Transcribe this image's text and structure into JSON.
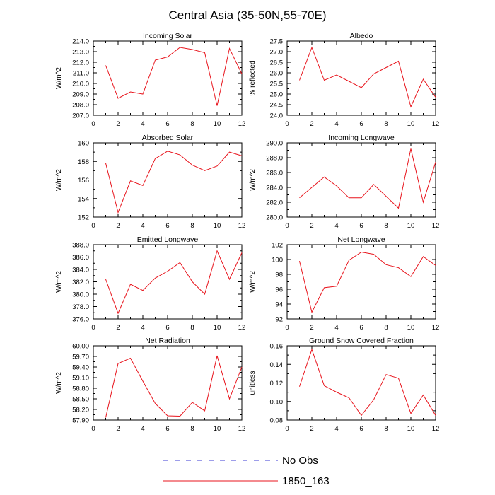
{
  "page_title": "Central Asia (35-50N,55-70E)",
  "colors": {
    "model_line": "#e8141c",
    "obs_line": "#3b3bd6",
    "axis": "#000000",
    "background": "#ffffff"
  },
  "legend": {
    "entries": [
      {
        "label": "No Obs",
        "style": "dashed",
        "color": "#3b3bd6"
      },
      {
        "label": "1850_163",
        "style": "solid",
        "color": "#e8141c"
      }
    ]
  },
  "chart_data": [
    {
      "type": "line",
      "title": "Incoming Solar",
      "ylabel": "W/m^2",
      "xlim": [
        0,
        12
      ],
      "ylim": [
        207,
        214
      ],
      "xticks": [
        0,
        2,
        4,
        6,
        8,
        10,
        12
      ],
      "xtick_labels": [
        "0",
        "2",
        "4",
        "6",
        "8",
        "10",
        "12"
      ],
      "yticks": [
        207,
        208,
        209,
        210,
        211,
        212,
        213,
        214
      ],
      "ytick_labels": [
        "207.0",
        "208.0",
        "209.0",
        "210.0",
        "211.0",
        "212.0",
        "213.0",
        "214.0"
      ],
      "series": [
        {
          "name": "1850_163",
          "x": [
            1,
            2,
            3,
            4,
            5,
            6,
            7,
            8,
            9,
            10,
            11,
            12
          ],
          "values": [
            211.7,
            208.6,
            209.2,
            209.0,
            212.2,
            212.5,
            213.4,
            213.2,
            212.9,
            207.9,
            213.3,
            210.9
          ]
        }
      ]
    },
    {
      "type": "line",
      "title": "Albedo",
      "ylabel": "% reflected",
      "xlim": [
        0,
        12
      ],
      "ylim": [
        24.0,
        27.5
      ],
      "xticks": [
        0,
        2,
        4,
        6,
        8,
        10,
        12
      ],
      "xtick_labels": [
        "0",
        "2",
        "4",
        "6",
        "8",
        "10",
        "12"
      ],
      "yticks": [
        24.0,
        24.5,
        25.0,
        25.5,
        26.0,
        26.5,
        27.0,
        27.5
      ],
      "ytick_labels": [
        "24.0",
        "24.5",
        "25.0",
        "25.5",
        "26.0",
        "26.5",
        "27.0",
        "27.5"
      ],
      "series": [
        {
          "name": "1850_163",
          "x": [
            1,
            2,
            3,
            4,
            5,
            6,
            7,
            8,
            9,
            10,
            11,
            12
          ],
          "values": [
            25.65,
            27.2,
            25.65,
            25.9,
            25.6,
            25.3,
            25.95,
            26.25,
            26.55,
            24.4,
            25.7,
            24.85
          ]
        }
      ]
    },
    {
      "type": "line",
      "title": "Absorbed Solar",
      "ylabel": "W/m^2",
      "xlim": [
        0,
        12
      ],
      "ylim": [
        152,
        160
      ],
      "xticks": [
        0,
        2,
        4,
        6,
        8,
        10,
        12
      ],
      "xtick_labels": [
        "0",
        "2",
        "4",
        "6",
        "8",
        "10",
        "12"
      ],
      "yticks": [
        152,
        154,
        156,
        158,
        160
      ],
      "ytick_labels": [
        "152",
        "154",
        "156",
        "158",
        "160"
      ],
      "series": [
        {
          "name": "1850_163",
          "x": [
            1,
            2,
            3,
            4,
            5,
            6,
            7,
            8,
            9,
            10,
            11,
            12
          ],
          "values": [
            157.8,
            152.5,
            155.9,
            155.4,
            158.3,
            159.1,
            158.7,
            157.6,
            157.0,
            157.5,
            159.0,
            158.6
          ]
        }
      ]
    },
    {
      "type": "line",
      "title": "Incoming Longwave",
      "ylabel": "W/m^2",
      "xlim": [
        0,
        12
      ],
      "ylim": [
        280,
        290
      ],
      "xticks": [
        0,
        2,
        4,
        6,
        8,
        10,
        12
      ],
      "xtick_labels": [
        "0",
        "2",
        "4",
        "6",
        "8",
        "10",
        "12"
      ],
      "yticks": [
        280,
        282,
        284,
        286,
        288,
        290
      ],
      "ytick_labels": [
        "280.0",
        "282.0",
        "284.0",
        "286.0",
        "288.0",
        "290.0"
      ],
      "series": [
        {
          "name": "1850_163",
          "x": [
            1,
            2,
            3,
            4,
            5,
            6,
            7,
            8,
            9,
            10,
            11,
            12
          ],
          "values": [
            282.6,
            284.0,
            285.4,
            284.2,
            282.6,
            282.6,
            284.4,
            282.8,
            281.2,
            289.2,
            282.0,
            287.4
          ]
        }
      ]
    },
    {
      "type": "line",
      "title": "Emitted Longwave",
      "ylabel": "W/m^2",
      "xlim": [
        0,
        12
      ],
      "ylim": [
        376,
        388
      ],
      "xticks": [
        0,
        2,
        4,
        6,
        8,
        10,
        12
      ],
      "xtick_labels": [
        "0",
        "2",
        "4",
        "6",
        "8",
        "10",
        "12"
      ],
      "yticks": [
        376,
        378,
        380,
        382,
        384,
        386,
        388
      ],
      "ytick_labels": [
        "376.0",
        "378.0",
        "380.0",
        "382.0",
        "384.0",
        "386.0",
        "388.0"
      ],
      "series": [
        {
          "name": "1850_163",
          "x": [
            1,
            2,
            3,
            4,
            5,
            6,
            7,
            8,
            9,
            10,
            11,
            12
          ],
          "values": [
            382.4,
            376.9,
            381.6,
            380.6,
            382.6,
            383.7,
            385.1,
            382.0,
            380.0,
            387.0,
            382.4,
            386.7
          ]
        }
      ]
    },
    {
      "type": "line",
      "title": "Net Longwave",
      "ylabel": "W/m^2",
      "xlim": [
        0,
        12
      ],
      "ylim": [
        92,
        102
      ],
      "xticks": [
        0,
        2,
        4,
        6,
        8,
        10,
        12
      ],
      "xtick_labels": [
        "0",
        "2",
        "4",
        "6",
        "8",
        "10",
        "12"
      ],
      "yticks": [
        92,
        94,
        96,
        98,
        100,
        102
      ],
      "ytick_labels": [
        "92",
        "94",
        "96",
        "98",
        "100",
        "102"
      ],
      "series": [
        {
          "name": "1850_163",
          "x": [
            1,
            2,
            3,
            4,
            5,
            6,
            7,
            8,
            9,
            10,
            11,
            12
          ],
          "values": [
            99.8,
            92.9,
            96.2,
            96.4,
            99.9,
            101.0,
            100.7,
            99.3,
            98.9,
            97.7,
            100.4,
            99.2
          ]
        }
      ]
    },
    {
      "type": "line",
      "title": "Net Radiation",
      "ylabel": "W/m^2",
      "xlim": [
        0,
        12
      ],
      "ylim": [
        57.9,
        60.0
      ],
      "xticks": [
        0,
        2,
        4,
        6,
        8,
        10,
        12
      ],
      "xtick_labels": [
        "0",
        "2",
        "4",
        "6",
        "8",
        "10",
        "12"
      ],
      "yticks": [
        57.9,
        58.2,
        58.5,
        58.8,
        59.1,
        59.4,
        59.7,
        60.0
      ],
      "ytick_labels": [
        "57.90",
        "58.20",
        "58.50",
        "58.80",
        "59.10",
        "59.40",
        "59.70",
        "60.00"
      ],
      "series": [
        {
          "name": "1850_163",
          "x": [
            1,
            2,
            3,
            4,
            5,
            6,
            7,
            8,
            9,
            10,
            11,
            12
          ],
          "values": [
            57.97,
            59.5,
            59.65,
            59.0,
            58.37,
            58.02,
            58.01,
            58.4,
            58.16,
            59.72,
            58.5,
            59.4
          ]
        }
      ]
    },
    {
      "type": "line",
      "title": "Ground Snow Covered Fraction",
      "ylabel": "unitless",
      "xlim": [
        0,
        12
      ],
      "ylim": [
        0.08,
        0.16
      ],
      "xticks": [
        0,
        2,
        4,
        6,
        8,
        10,
        12
      ],
      "xtick_labels": [
        "0",
        "2",
        "4",
        "6",
        "8",
        "10",
        "12"
      ],
      "yticks": [
        0.08,
        0.1,
        0.12,
        0.14,
        0.16
      ],
      "ytick_labels": [
        "0.08",
        "0.10",
        "0.12",
        "0.14",
        "0.16"
      ],
      "series": [
        {
          "name": "1850_163",
          "x": [
            1,
            2,
            3,
            4,
            5,
            6,
            7,
            8,
            9,
            10,
            11,
            12
          ],
          "values": [
            0.116,
            0.156,
            0.117,
            0.11,
            0.104,
            0.085,
            0.102,
            0.129,
            0.125,
            0.087,
            0.107,
            0.085
          ]
        }
      ]
    }
  ]
}
